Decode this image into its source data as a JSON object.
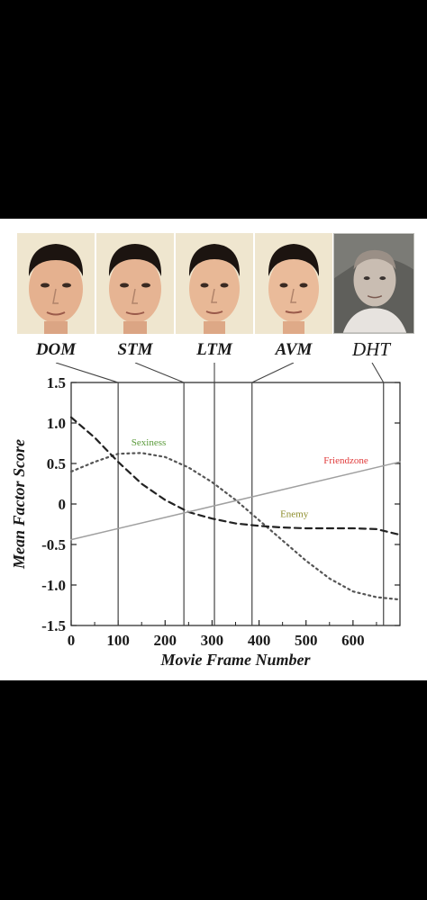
{
  "faces": [
    {
      "label": "DOM",
      "icon": "face-portrait-icon"
    },
    {
      "label": "STM",
      "icon": "face-portrait-icon"
    },
    {
      "label": "LTM",
      "icon": "face-portrait-icon"
    },
    {
      "label": "AVM",
      "icon": "face-portrait-icon"
    },
    {
      "label": "DHT",
      "icon": "face-photo-icon"
    }
  ],
  "chart_data": {
    "type": "line",
    "xlabel": "Movie Frame Number",
    "ylabel": "Mean Factor Score",
    "xlim": [
      0,
      700
    ],
    "ylim": [
      -1.5,
      1.5
    ],
    "x_ticks": [
      0,
      100,
      200,
      300,
      400,
      500,
      600
    ],
    "y_ticks": [
      1.5,
      1.0,
      0.5,
      0,
      -0.5,
      -1.0,
      -1.5
    ],
    "x_tick_labels": [
      "0",
      "100",
      "200",
      "300",
      "400",
      "500",
      "600"
    ],
    "y_tick_labels": [
      "1.5",
      "1.0",
      "0.5",
      "0",
      "-0.5",
      "-1.0",
      "-1.5"
    ],
    "grid": false,
    "markers": [
      {
        "label": "DOM",
        "x": 100
      },
      {
        "label": "STM",
        "x": 240
      },
      {
        "label": "LTM",
        "x": 305
      },
      {
        "label": "AVM",
        "x": 385
      },
      {
        "label": "DHT",
        "x": 665
      }
    ],
    "series": [
      {
        "name": "Sexiness",
        "style": "dotted",
        "color": "#555555",
        "label_color": "#5a9a3a",
        "x": [
          0,
          50,
          100,
          150,
          200,
          250,
          300,
          350,
          400,
          450,
          500,
          550,
          600,
          650,
          700
        ],
        "y": [
          0.4,
          0.52,
          0.62,
          0.63,
          0.58,
          0.45,
          0.27,
          0.05,
          -0.2,
          -0.45,
          -0.7,
          -0.92,
          -1.08,
          -1.15,
          -1.18
        ]
      },
      {
        "name": "Enemy",
        "style": "dashed",
        "color": "#222222",
        "label_color": "#8c8c2a",
        "x": [
          0,
          50,
          100,
          150,
          200,
          250,
          300,
          350,
          400,
          450,
          500,
          550,
          600,
          650,
          700
        ],
        "y": [
          1.07,
          0.82,
          0.52,
          0.25,
          0.05,
          -0.1,
          -0.18,
          -0.24,
          -0.27,
          -0.29,
          -0.3,
          -0.3,
          -0.3,
          -0.31,
          -0.38
        ]
      },
      {
        "name": "Friendzone",
        "style": "solid",
        "color": "#a0a0a0",
        "label_color": "#e03a3a",
        "x": [
          0,
          700
        ],
        "y": [
          -0.44,
          0.52
        ]
      }
    ],
    "annotations": [
      {
        "text": "Sexiness",
        "series": "Sexiness"
      },
      {
        "text": "Friendzone",
        "series": "Friendzone"
      },
      {
        "text": "Enemy",
        "series": "Enemy"
      }
    ]
  }
}
